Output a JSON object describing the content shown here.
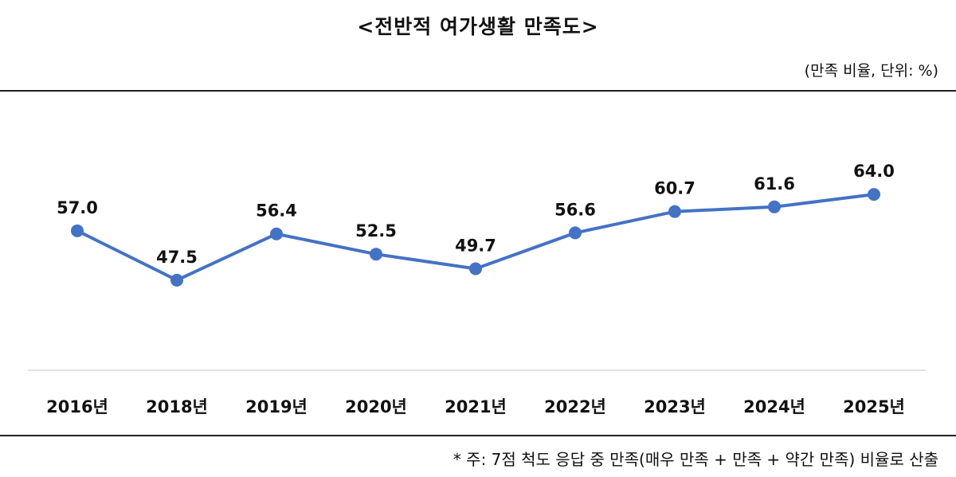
{
  "chart_data": {
    "type": "line",
    "title": "<전반적 여가생활 만족도>",
    "unit_label": "(만족 비율, 단위: %)",
    "categories": [
      "2016년",
      "2018년",
      "2019년",
      "2020년",
      "2021년",
      "2022년",
      "2023년",
      "2024년",
      "2025년"
    ],
    "values": [
      57.0,
      47.5,
      56.4,
      52.5,
      49.7,
      56.6,
      60.7,
      61.6,
      64.0
    ],
    "data_labels": [
      "57.0",
      "47.5",
      "56.4",
      "52.5",
      "49.7",
      "56.6",
      "60.7",
      "61.6",
      "64.0"
    ],
    "ylim": [
      30,
      70
    ],
    "grid": false,
    "line_color": "#4472C4",
    "footnote": "* 주: 7점 척도 응답 중 만족(매우 만족 + 만족 + 약간 만족) 비율로 산출"
  }
}
